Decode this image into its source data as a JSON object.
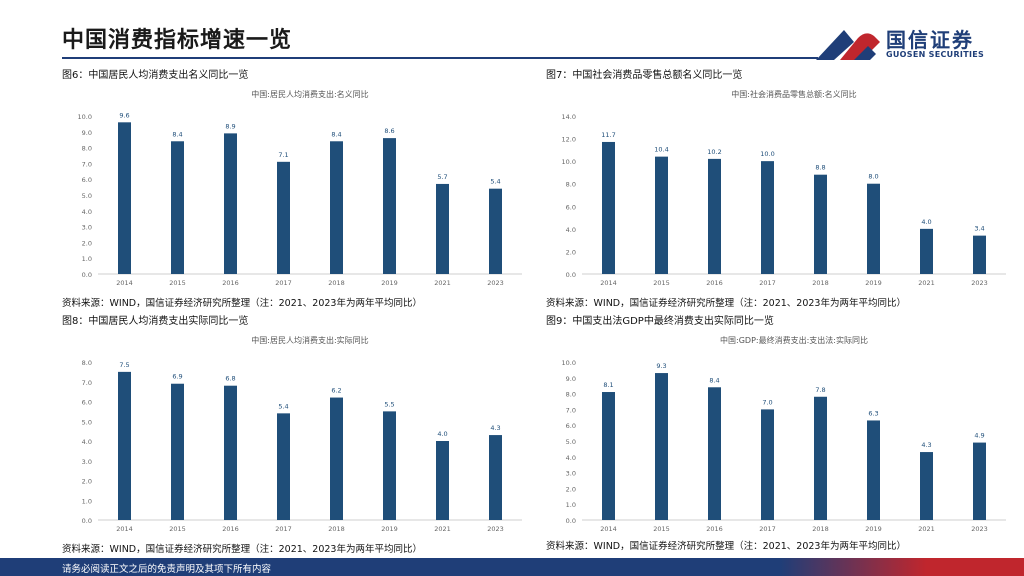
{
  "header": {
    "title": "中国消费指标增速一览",
    "logo_text": "国信证券",
    "logo_sub": "GUOSEN SECURITIES",
    "colors": {
      "accent": "#1f3e78",
      "red": "#c0262d"
    }
  },
  "footer": {
    "text": "请务必阅读正文之后的免责声明及其项下所有内容"
  },
  "panels": [
    {
      "label": "图6：中国居民人均消费支出名义同比一览",
      "source": "资料来源：WIND，国信证券经济研究所整理（注：2021、2023年为两年平均同比）"
    },
    {
      "label": "图7：中国社会消费品零售总额名义同比一览",
      "source": "资料来源：WIND，国信证券经济研究所整理（注：2021、2023年为两年平均同比）"
    },
    {
      "label": "图8：中国居民人均消费支出实际同比一览",
      "source": "资料来源：WIND，国信证券经济研究所整理（注：2021、2023年为两年平均同比）"
    },
    {
      "label": "图9：中国支出法GDP中最终消费支出实际同比一览",
      "source": "资料来源：WIND，国信证券经济研究所整理（注：2021、2023年为两年平均同比）"
    }
  ],
  "chart_data": [
    {
      "type": "bar",
      "title": "中国:居民人均消费支出:名义同比",
      "categories": [
        "2014",
        "2015",
        "2016",
        "2017",
        "2018",
        "2019",
        "2021",
        "2023"
      ],
      "values": [
        9.6,
        8.4,
        8.9,
        7.1,
        8.4,
        8.6,
        5.7,
        5.4
      ],
      "value_labels": [
        "9.6",
        "8.4",
        "8.9",
        "7.1",
        "8.4",
        "8.6",
        "5.7",
        "5.4"
      ],
      "ylim": [
        0,
        10
      ],
      "yticks": [
        "0.0",
        "1.0",
        "2.0",
        "3.0",
        "4.0",
        "5.0",
        "6.0",
        "7.0",
        "8.0",
        "9.0",
        "10.0"
      ],
      "color": "#1f4e79"
    },
    {
      "type": "bar",
      "title": "中国:社会消费品零售总额:名义同比",
      "categories": [
        "2014",
        "2015",
        "2016",
        "2017",
        "2018",
        "2019",
        "2021",
        "2023"
      ],
      "values": [
        11.7,
        10.4,
        10.2,
        10.0,
        8.8,
        8.0,
        4.0,
        3.4
      ],
      "value_labels": [
        "11.7",
        "10.4",
        "10.2",
        "10.0",
        "8.8",
        "8.0",
        "4.0",
        "3.4"
      ],
      "ylim": [
        0,
        14
      ],
      "yticks": [
        "0.0",
        "2.0",
        "4.0",
        "6.0",
        "8.0",
        "10.0",
        "12.0",
        "14.0"
      ],
      "color": "#1f4e79"
    },
    {
      "type": "bar",
      "title": "中国:居民人均消费支出:实际同比",
      "categories": [
        "2014",
        "2015",
        "2016",
        "2017",
        "2018",
        "2019",
        "2021",
        "2023"
      ],
      "values": [
        7.5,
        6.9,
        6.8,
        5.4,
        6.2,
        5.5,
        4.0,
        4.3
      ],
      "value_labels": [
        "7.5",
        "6.9",
        "6.8",
        "5.4",
        "6.2",
        "5.5",
        "4.0",
        "4.3"
      ],
      "ylim": [
        0,
        8
      ],
      "yticks": [
        "0.0",
        "1.0",
        "2.0",
        "3.0",
        "4.0",
        "5.0",
        "6.0",
        "7.0",
        "8.0"
      ],
      "color": "#1f4e79"
    },
    {
      "type": "bar",
      "title": "中国:GDP:最终消费支出:支出法:实际同比",
      "categories": [
        "2014",
        "2015",
        "2016",
        "2017",
        "2018",
        "2019",
        "2021",
        "2023"
      ],
      "values": [
        8.1,
        9.3,
        8.4,
        7.0,
        7.8,
        6.3,
        4.3,
        4.9
      ],
      "value_labels": [
        "8.1",
        "9.3",
        "8.4",
        "7.0",
        "7.8",
        "6.3",
        "4.3",
        "4.9"
      ],
      "ylim": [
        0,
        10
      ],
      "yticks": [
        "0.0",
        "1.0",
        "2.0",
        "3.0",
        "4.0",
        "5.0",
        "6.0",
        "7.0",
        "8.0",
        "9.0",
        "10.0"
      ],
      "color": "#1f4e79"
    }
  ]
}
